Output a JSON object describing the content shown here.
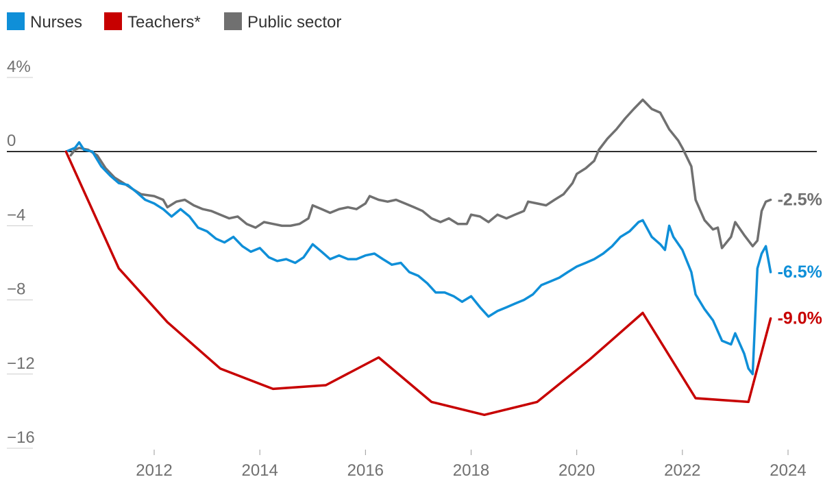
{
  "chart_data": {
    "type": "line",
    "title": "",
    "xlabel": "",
    "ylabel": "",
    "xlim": [
      2010.3,
      2024.5
    ],
    "ylim": [
      -16.5,
      4.5
    ],
    "grid": false,
    "legend_position": "top-left",
    "y_ticks": [
      {
        "value": 4,
        "label": "4%"
      },
      {
        "value": 0,
        "label": "0"
      },
      {
        "value": -4,
        "label": "−4"
      },
      {
        "value": -8,
        "label": "−8"
      },
      {
        "value": -12,
        "label": "−12"
      },
      {
        "value": -16,
        "label": "−16"
      }
    ],
    "x_ticks": [
      {
        "value": 2012,
        "label": "2012"
      },
      {
        "value": 2014,
        "label": "2014"
      },
      {
        "value": 2016,
        "label": "2016"
      },
      {
        "value": 2018,
        "label": "2018"
      },
      {
        "value": 2020,
        "label": "2020"
      },
      {
        "value": 2022,
        "label": "2022"
      },
      {
        "value": 2024,
        "label": "2024"
      }
    ],
    "series": [
      {
        "name": "Nurses",
        "color": "#0f8fd8",
        "end_label": "-6.5%",
        "points": [
          [
            2010.33,
            0
          ],
          [
            2010.5,
            0.2
          ],
          [
            2010.58,
            0.5
          ],
          [
            2010.67,
            0.1
          ],
          [
            2010.83,
            0
          ],
          [
            2011.0,
            -0.8
          ],
          [
            2011.17,
            -1.3
          ],
          [
            2011.33,
            -1.7
          ],
          [
            2011.5,
            -1.8
          ],
          [
            2011.67,
            -2.2
          ],
          [
            2011.83,
            -2.6
          ],
          [
            2012.0,
            -2.8
          ],
          [
            2012.17,
            -3.1
          ],
          [
            2012.33,
            -3.5
          ],
          [
            2012.5,
            -3.1
          ],
          [
            2012.67,
            -3.5
          ],
          [
            2012.83,
            -4.1
          ],
          [
            2013.0,
            -4.3
          ],
          [
            2013.17,
            -4.7
          ],
          [
            2013.33,
            -4.9
          ],
          [
            2013.5,
            -4.6
          ],
          [
            2013.67,
            -5.1
          ],
          [
            2013.83,
            -5.4
          ],
          [
            2014.0,
            -5.2
          ],
          [
            2014.17,
            -5.7
          ],
          [
            2014.33,
            -5.9
          ],
          [
            2014.5,
            -5.8
          ],
          [
            2014.67,
            -6.0
          ],
          [
            2014.83,
            -5.7
          ],
          [
            2015.0,
            -5.0
          ],
          [
            2015.17,
            -5.4
          ],
          [
            2015.33,
            -5.8
          ],
          [
            2015.5,
            -5.6
          ],
          [
            2015.67,
            -5.8
          ],
          [
            2015.83,
            -5.8
          ],
          [
            2016.0,
            -5.6
          ],
          [
            2016.17,
            -5.5
          ],
          [
            2016.33,
            -5.8
          ],
          [
            2016.5,
            -6.1
          ],
          [
            2016.67,
            -6.0
          ],
          [
            2016.83,
            -6.5
          ],
          [
            2017.0,
            -6.7
          ],
          [
            2017.17,
            -7.1
          ],
          [
            2017.33,
            -7.6
          ],
          [
            2017.5,
            -7.6
          ],
          [
            2017.67,
            -7.8
          ],
          [
            2017.83,
            -8.1
          ],
          [
            2018.0,
            -7.8
          ],
          [
            2018.17,
            -8.4
          ],
          [
            2018.33,
            -8.9
          ],
          [
            2018.5,
            -8.6
          ],
          [
            2018.67,
            -8.4
          ],
          [
            2018.83,
            -8.2
          ],
          [
            2019.0,
            -8.0
          ],
          [
            2019.17,
            -7.7
          ],
          [
            2019.33,
            -7.2
          ],
          [
            2019.5,
            -7.0
          ],
          [
            2019.67,
            -6.8
          ],
          [
            2019.83,
            -6.5
          ],
          [
            2020.0,
            -6.2
          ],
          [
            2020.17,
            -6.0
          ],
          [
            2020.33,
            -5.8
          ],
          [
            2020.5,
            -5.5
          ],
          [
            2020.67,
            -5.1
          ],
          [
            2020.83,
            -4.6
          ],
          [
            2021.0,
            -4.3
          ],
          [
            2021.17,
            -3.8
          ],
          [
            2021.25,
            -3.7
          ],
          [
            2021.42,
            -4.6
          ],
          [
            2021.58,
            -5.0
          ],
          [
            2021.67,
            -5.3
          ],
          [
            2021.75,
            -4.0
          ],
          [
            2021.83,
            -4.6
          ],
          [
            2022.0,
            -5.3
          ],
          [
            2022.17,
            -6.5
          ],
          [
            2022.25,
            -7.7
          ],
          [
            2022.42,
            -8.5
          ],
          [
            2022.58,
            -9.1
          ],
          [
            2022.75,
            -10.2
          ],
          [
            2022.92,
            -10.4
          ],
          [
            2023.0,
            -9.8
          ],
          [
            2023.17,
            -10.9
          ],
          [
            2023.25,
            -11.7
          ],
          [
            2023.33,
            -12.0
          ],
          [
            2023.42,
            -6.3
          ],
          [
            2023.5,
            -5.5
          ],
          [
            2023.58,
            -5.1
          ],
          [
            2023.67,
            -6.5
          ]
        ]
      },
      {
        "name": "Teachers*",
        "color": "#c70000",
        "end_label": "-9.0%",
        "points": [
          [
            2010.33,
            0
          ],
          [
            2011.33,
            -6.3
          ],
          [
            2012.25,
            -9.2
          ],
          [
            2013.25,
            -11.7
          ],
          [
            2014.25,
            -12.8
          ],
          [
            2015.25,
            -12.6
          ],
          [
            2016.25,
            -11.1
          ],
          [
            2017.25,
            -13.5
          ],
          [
            2018.25,
            -14.2
          ],
          [
            2019.25,
            -13.5
          ],
          [
            2020.25,
            -11.2
          ],
          [
            2021.25,
            -8.7
          ],
          [
            2022.25,
            -13.3
          ],
          [
            2023.25,
            -13.5
          ],
          [
            2023.67,
            -9.0
          ]
        ]
      },
      {
        "name": "Public sector",
        "color": "#707070",
        "end_label": "-2.5%",
        "points": [
          [
            2010.42,
            -0.2
          ],
          [
            2010.5,
            0.1
          ],
          [
            2010.58,
            0.2
          ],
          [
            2010.75,
            0.1
          ],
          [
            2010.92,
            -0.2
          ],
          [
            2011.08,
            -0.9
          ],
          [
            2011.25,
            -1.4
          ],
          [
            2011.42,
            -1.7
          ],
          [
            2011.58,
            -2.0
          ],
          [
            2011.75,
            -2.3
          ],
          [
            2012.0,
            -2.4
          ],
          [
            2012.17,
            -2.6
          ],
          [
            2012.25,
            -3.0
          ],
          [
            2012.42,
            -2.7
          ],
          [
            2012.58,
            -2.6
          ],
          [
            2012.75,
            -2.9
          ],
          [
            2012.92,
            -3.1
          ],
          [
            2013.08,
            -3.2
          ],
          [
            2013.25,
            -3.4
          ],
          [
            2013.42,
            -3.6
          ],
          [
            2013.58,
            -3.5
          ],
          [
            2013.75,
            -3.9
          ],
          [
            2013.92,
            -4.1
          ],
          [
            2014.08,
            -3.8
          ],
          [
            2014.25,
            -3.9
          ],
          [
            2014.42,
            -4.0
          ],
          [
            2014.58,
            -4.0
          ],
          [
            2014.75,
            -3.9
          ],
          [
            2014.92,
            -3.6
          ],
          [
            2015.0,
            -2.9
          ],
          [
            2015.17,
            -3.1
          ],
          [
            2015.33,
            -3.3
          ],
          [
            2015.5,
            -3.1
          ],
          [
            2015.67,
            -3.0
          ],
          [
            2015.83,
            -3.1
          ],
          [
            2016.0,
            -2.8
          ],
          [
            2016.08,
            -2.4
          ],
          [
            2016.25,
            -2.6
          ],
          [
            2016.42,
            -2.7
          ],
          [
            2016.58,
            -2.6
          ],
          [
            2016.75,
            -2.8
          ],
          [
            2016.92,
            -3.0
          ],
          [
            2017.08,
            -3.2
          ],
          [
            2017.25,
            -3.6
          ],
          [
            2017.42,
            -3.8
          ],
          [
            2017.58,
            -3.6
          ],
          [
            2017.75,
            -3.9
          ],
          [
            2017.92,
            -3.9
          ],
          [
            2018.0,
            -3.4
          ],
          [
            2018.17,
            -3.5
          ],
          [
            2018.33,
            -3.8
          ],
          [
            2018.5,
            -3.4
          ],
          [
            2018.67,
            -3.6
          ],
          [
            2018.83,
            -3.4
          ],
          [
            2019.0,
            -3.2
          ],
          [
            2019.08,
            -2.7
          ],
          [
            2019.25,
            -2.8
          ],
          [
            2019.42,
            -2.9
          ],
          [
            2019.58,
            -2.6
          ],
          [
            2019.75,
            -2.3
          ],
          [
            2019.92,
            -1.7
          ],
          [
            2020.0,
            -1.2
          ],
          [
            2020.17,
            -0.9
          ],
          [
            2020.33,
            -0.5
          ],
          [
            2020.42,
            0.1
          ],
          [
            2020.58,
            0.7
          ],
          [
            2020.75,
            1.2
          ],
          [
            2020.92,
            1.8
          ],
          [
            2021.08,
            2.3
          ],
          [
            2021.25,
            2.8
          ],
          [
            2021.42,
            2.3
          ],
          [
            2021.58,
            2.1
          ],
          [
            2021.75,
            1.2
          ],
          [
            2021.92,
            0.6
          ],
          [
            2022.0,
            0.2
          ],
          [
            2022.17,
            -0.8
          ],
          [
            2022.25,
            -2.6
          ],
          [
            2022.42,
            -3.7
          ],
          [
            2022.58,
            -4.2
          ],
          [
            2022.67,
            -4.1
          ],
          [
            2022.75,
            -5.2
          ],
          [
            2022.92,
            -4.6
          ],
          [
            2023.0,
            -3.8
          ],
          [
            2023.17,
            -4.5
          ],
          [
            2023.33,
            -5.1
          ],
          [
            2023.42,
            -4.8
          ],
          [
            2023.5,
            -3.2
          ],
          [
            2023.58,
            -2.7
          ],
          [
            2023.67,
            -2.6
          ]
        ]
      }
    ]
  }
}
